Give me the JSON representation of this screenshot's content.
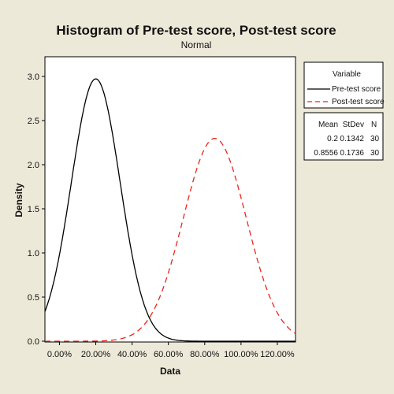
{
  "chart_data": {
    "type": "line",
    "title": "Histogram of Pre-test score, Post-test score",
    "subtitle": "Normal",
    "xlabel": "Data",
    "ylabel": "Density",
    "xlim": [
      -0.08,
      1.3
    ],
    "ylim": [
      0,
      3.05
    ],
    "x_ticks": [
      0.0,
      0.2,
      0.4,
      0.6,
      0.8,
      1.0,
      1.2
    ],
    "x_tick_labels": [
      "0.00%",
      "20.00%",
      "40.00%",
      "60.00%",
      "80.00%",
      "100.00%",
      "120.00%"
    ],
    "y_ticks": [
      0.0,
      0.5,
      1.0,
      1.5,
      2.0,
      2.5,
      3.0
    ],
    "y_tick_labels": [
      "0.0",
      "0.5",
      "1.0",
      "1.5",
      "2.0",
      "2.5",
      "3.0"
    ],
    "grid": false,
    "legend_position": "right",
    "legend_title": "Variable",
    "stats_headers": [
      "Mean",
      "StDev",
      "N"
    ],
    "series": [
      {
        "name": "Pre-test score",
        "color": "#000000",
        "style": "solid",
        "mean": "0.2",
        "stdev": "0.1342",
        "n": "30",
        "mean_value": 0.2,
        "stdev_value": 0.1342
      },
      {
        "name": "Post-test score",
        "color": "#e8251c",
        "style": "dashed",
        "mean": "0.8556",
        "stdev": "0.1736",
        "n": "30",
        "mean_value": 0.8556,
        "stdev_value": 0.1736
      }
    ]
  }
}
